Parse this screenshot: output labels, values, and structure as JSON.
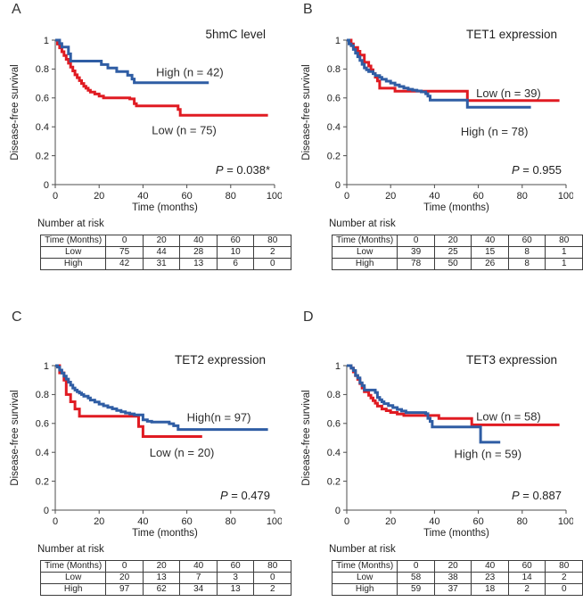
{
  "chart_data": [
    {
      "type": "line",
      "subtype": "kaplan-meier-step",
      "letter": "A",
      "title": "5hmC level",
      "p_value": "P = 0.038*",
      "xlabel": "Time (months)",
      "ylabel": "Disease-free survival",
      "xlim": [
        0,
        100
      ],
      "ylim": [
        0,
        1
      ],
      "xticks": [
        0,
        20,
        40,
        60,
        80,
        100
      ],
      "yticks": [
        "0",
        "0.2",
        "0.4",
        "0.6",
        "0.8",
        "1"
      ],
      "grid": false,
      "series": [
        {
          "name": "Low",
          "label": "Low (n = 75)",
          "n": 75,
          "color": "#e01b22",
          "label_pos": {
            "x": 44,
            "y": 0.35
          },
          "steps": [
            [
              0,
              1
            ],
            [
              1,
              0.973
            ],
            [
              2,
              0.947
            ],
            [
              3,
              0.92
            ],
            [
              4,
              0.893
            ],
            [
              5,
              0.867
            ],
            [
              6,
              0.84
            ],
            [
              7,
              0.813
            ],
            [
              8,
              0.787
            ],
            [
              9,
              0.76
            ],
            [
              10,
              0.74
            ],
            [
              11,
              0.72
            ],
            [
              12,
              0.7
            ],
            [
              13,
              0.68
            ],
            [
              14,
              0.667
            ],
            [
              15,
              0.653
            ],
            [
              16,
              0.64
            ],
            [
              18,
              0.627
            ],
            [
              20,
              0.613
            ],
            [
              22,
              0.6
            ],
            [
              34,
              0.593
            ],
            [
              36,
              0.56
            ],
            [
              37,
              0.545
            ],
            [
              55,
              0.545
            ],
            [
              56,
              0.52
            ],
            [
              57,
              0.48
            ],
            [
              97,
              0.48
            ]
          ]
        },
        {
          "name": "High",
          "label": "High (n = 42)",
          "n": 42,
          "color": "#2f5da4",
          "label_pos": {
            "x": 46,
            "y": 0.75
          },
          "steps": [
            [
              0,
              1
            ],
            [
              2,
              0.976
            ],
            [
              3,
              0.952
            ],
            [
              6,
              0.905
            ],
            [
              7,
              0.855
            ],
            [
              21,
              0.831
            ],
            [
              24,
              0.807
            ],
            [
              28,
              0.782
            ],
            [
              33,
              0.757
            ],
            [
              35,
              0.731
            ],
            [
              36,
              0.705
            ],
            [
              70,
              0.705
            ]
          ]
        }
      ],
      "risk_table": {
        "title": "Number at risk",
        "header": [
          "Time (Months)",
          "0",
          "20",
          "40",
          "60",
          "80"
        ],
        "rows": [
          [
            "Low",
            "75",
            "44",
            "28",
            "10",
            "2"
          ],
          [
            "High",
            "42",
            "31",
            "13",
            "6",
            "0"
          ]
        ]
      }
    },
    {
      "type": "line",
      "subtype": "kaplan-meier-step",
      "letter": "B",
      "title": "TET1 expression",
      "p_value": "P = 0.955",
      "xlabel": "Time (months)",
      "ylabel": "Disease-free survival",
      "xlim": [
        0,
        100
      ],
      "ylim": [
        0,
        1
      ],
      "xticks": [
        0,
        20,
        40,
        60,
        80,
        100
      ],
      "yticks": [
        "0",
        "0.2",
        "0.4",
        "0.6",
        "0.8",
        "1"
      ],
      "grid": false,
      "series": [
        {
          "name": "Low",
          "label": "Low (n = 39)",
          "n": 39,
          "color": "#e01b22",
          "label_pos": {
            "x": 59,
            "y": 0.605
          },
          "steps": [
            [
              0,
              1
            ],
            [
              2,
              0.974
            ],
            [
              3,
              0.949
            ],
            [
              5,
              0.923
            ],
            [
              6,
              0.897
            ],
            [
              8,
              0.846
            ],
            [
              10,
              0.821
            ],
            [
              11,
              0.795
            ],
            [
              12,
              0.769
            ],
            [
              13,
              0.744
            ],
            [
              14,
              0.718
            ],
            [
              15,
              0.667
            ],
            [
              22,
              0.647
            ],
            [
              54,
              0.647
            ],
            [
              55,
              0.582
            ],
            [
              97,
              0.582
            ]
          ]
        },
        {
          "name": "High",
          "label": "High (n = 78)",
          "n": 78,
          "color": "#2f5da4",
          "label_pos": {
            "x": 52,
            "y": 0.34
          },
          "steps": [
            [
              0,
              1
            ],
            [
              1,
              0.974
            ],
            [
              2,
              0.962
            ],
            [
              3,
              0.936
            ],
            [
              4,
              0.91
            ],
            [
              5,
              0.885
            ],
            [
              6,
              0.859
            ],
            [
              7,
              0.833
            ],
            [
              8,
              0.808
            ],
            [
              9,
              0.795
            ],
            [
              10,
              0.782
            ],
            [
              12,
              0.768
            ],
            [
              13,
              0.755
            ],
            [
              15,
              0.742
            ],
            [
              16,
              0.729
            ],
            [
              18,
              0.716
            ],
            [
              20,
              0.703
            ],
            [
              22,
              0.69
            ],
            [
              24,
              0.679
            ],
            [
              26,
              0.668
            ],
            [
              28,
              0.66
            ],
            [
              30,
              0.654
            ],
            [
              32,
              0.648
            ],
            [
              34,
              0.642
            ],
            [
              36,
              0.629
            ],
            [
              37,
              0.613
            ],
            [
              38,
              0.585
            ],
            [
              54,
              0.585
            ],
            [
              55,
              0.535
            ],
            [
              84,
              0.535
            ]
          ]
        }
      ],
      "risk_table": {
        "title": "Number at risk",
        "header": [
          "Time (Months)",
          "0",
          "20",
          "40",
          "60",
          "80"
        ],
        "rows": [
          [
            "Low",
            "39",
            "25",
            "15",
            "8",
            "1"
          ],
          [
            "High",
            "78",
            "50",
            "26",
            "8",
            "1"
          ]
        ]
      }
    },
    {
      "type": "line",
      "subtype": "kaplan-meier-step",
      "letter": "C",
      "title": "TET2 expression",
      "p_value": "P = 0.479",
      "xlabel": "Time (months)",
      "ylabel": "Disease-free survival",
      "xlim": [
        0,
        100
      ],
      "ylim": [
        0,
        1
      ],
      "xticks": [
        0,
        20,
        40,
        60,
        80,
        100
      ],
      "yticks": [
        "0",
        "0.2",
        "0.4",
        "0.6",
        "0.8",
        "1"
      ],
      "grid": false,
      "series": [
        {
          "name": "Low",
          "label": "Low (n = 20)",
          "n": 20,
          "color": "#e01b22",
          "label_pos": {
            "x": 43,
            "y": 0.37
          },
          "steps": [
            [
              0,
              1
            ],
            [
              2,
              0.95
            ],
            [
              4,
              0.9
            ],
            [
              5,
              0.8
            ],
            [
              7,
              0.75
            ],
            [
              9,
              0.7
            ],
            [
              11,
              0.65
            ],
            [
              38,
              0.579
            ],
            [
              40,
              0.509
            ],
            [
              67,
              0.509
            ]
          ]
        },
        {
          "name": "High",
          "label": "High(n = 97)",
          "n": 97,
          "color": "#2f5da4",
          "label_pos": {
            "x": 60,
            "y": 0.615
          },
          "steps": [
            [
              0,
              1
            ],
            [
              1,
              0.99
            ],
            [
              2,
              0.969
            ],
            [
              3,
              0.948
            ],
            [
              4,
              0.927
            ],
            [
              5,
              0.907
            ],
            [
              6,
              0.886
            ],
            [
              7,
              0.865
            ],
            [
              8,
              0.845
            ],
            [
              9,
              0.831
            ],
            [
              10,
              0.82
            ],
            [
              11,
              0.81
            ],
            [
              12,
              0.8
            ],
            [
              13,
              0.789
            ],
            [
              15,
              0.776
            ],
            [
              16,
              0.762
            ],
            [
              18,
              0.748
            ],
            [
              20,
              0.734
            ],
            [
              22,
              0.722
            ],
            [
              24,
              0.712
            ],
            [
              26,
              0.701
            ],
            [
              28,
              0.69
            ],
            [
              30,
              0.68
            ],
            [
              32,
              0.672
            ],
            [
              34,
              0.666
            ],
            [
              36,
              0.659
            ],
            [
              40,
              0.625
            ],
            [
              42,
              0.615
            ],
            [
              44,
              0.609
            ],
            [
              52,
              0.598
            ],
            [
              54,
              0.584
            ],
            [
              56,
              0.558
            ],
            [
              97,
              0.558
            ]
          ]
        }
      ],
      "risk_table": {
        "title": "Number at risk",
        "header": [
          "Time (Months)",
          "0",
          "20",
          "40",
          "60",
          "80"
        ],
        "rows": [
          [
            "Low",
            "20",
            "13",
            "7",
            "3",
            "0"
          ],
          [
            "High",
            "97",
            "62",
            "34",
            "13",
            "2"
          ]
        ]
      }
    },
    {
      "type": "line",
      "subtype": "kaplan-meier-step",
      "letter": "D",
      "title": "TET3 expression",
      "p_value": "P = 0.887",
      "xlabel": "Time (months)",
      "ylabel": "Disease-free survival",
      "xlim": [
        0,
        100
      ],
      "ylim": [
        0,
        1
      ],
      "xticks": [
        0,
        20,
        40,
        60,
        80,
        100
      ],
      "yticks": [
        "0",
        "0.2",
        "0.4",
        "0.6",
        "0.8",
        "1"
      ],
      "grid": false,
      "series": [
        {
          "name": "Low",
          "label": "Low (n = 58)",
          "n": 58,
          "color": "#e01b22",
          "label_pos": {
            "x": 59,
            "y": 0.62
          },
          "steps": [
            [
              0,
              1
            ],
            [
              2,
              0.983
            ],
            [
              3,
              0.957
            ],
            [
              4,
              0.931
            ],
            [
              5,
              0.905
            ],
            [
              6,
              0.876
            ],
            [
              7,
              0.845
            ],
            [
              8,
              0.819
            ],
            [
              10,
              0.795
            ],
            [
              11,
              0.776
            ],
            [
              12,
              0.758
            ],
            [
              13,
              0.74
            ],
            [
              14,
              0.72
            ],
            [
              16,
              0.7
            ],
            [
              18,
              0.688
            ],
            [
              20,
              0.676
            ],
            [
              23,
              0.665
            ],
            [
              26,
              0.655
            ],
            [
              42,
              0.634
            ],
            [
              57,
              0.59
            ],
            [
              97,
              0.59
            ]
          ]
        },
        {
          "name": "High",
          "label": "High (n = 59)",
          "n": 59,
          "color": "#2f5da4",
          "label_pos": {
            "x": 49,
            "y": 0.36
          },
          "steps": [
            [
              0,
              1
            ],
            [
              2,
              0.983
            ],
            [
              3,
              0.966
            ],
            [
              4,
              0.932
            ],
            [
              5,
              0.915
            ],
            [
              6,
              0.881
            ],
            [
              7,
              0.862
            ],
            [
              8,
              0.831
            ],
            [
              13,
              0.814
            ],
            [
              14,
              0.78
            ],
            [
              15,
              0.764
            ],
            [
              16,
              0.75
            ],
            [
              17,
              0.737
            ],
            [
              19,
              0.724
            ],
            [
              21,
              0.71
            ],
            [
              23,
              0.697
            ],
            [
              25,
              0.686
            ],
            [
              27,
              0.675
            ],
            [
              36,
              0.667
            ],
            [
              37,
              0.635
            ],
            [
              38,
              0.614
            ],
            [
              39,
              0.576
            ],
            [
              60,
              0.576
            ],
            [
              61,
              0.47
            ],
            [
              70,
              0.47
            ]
          ]
        }
      ],
      "risk_table": {
        "title": "Number at risk",
        "header": [
          "Time (Months)",
          "0",
          "20",
          "40",
          "60",
          "80"
        ],
        "rows": [
          [
            "Low",
            "58",
            "38",
            "23",
            "14",
            "2"
          ],
          [
            "High",
            "59",
            "37",
            "18",
            "2",
            "0"
          ]
        ]
      }
    }
  ],
  "style": {
    "axis_color": "#4d4d4d",
    "text_color": "#1f1f1f",
    "curve_width": 3
  }
}
